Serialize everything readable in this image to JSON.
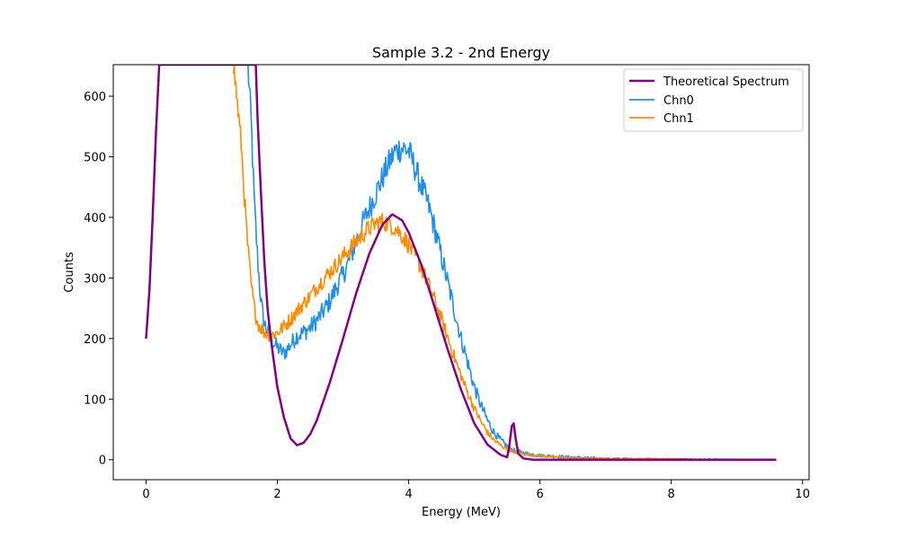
{
  "chart_data": {
    "type": "line",
    "title": "Sample 3.2 - 2nd Energy",
    "xlabel": "Energy (MeV)",
    "ylabel": "Counts",
    "xlim": [
      -0.5,
      10.1
    ],
    "ylim": [
      -33,
      652
    ],
    "xticks": [
      0,
      2,
      4,
      6,
      8,
      10
    ],
    "yticks": [
      0,
      100,
      200,
      300,
      400,
      500,
      600
    ],
    "grid": false,
    "legend_position": "top-right",
    "series": [
      {
        "name": "Theoretical Spectrum",
        "color": "#800080",
        "points": [
          [
            0.0,
            200
          ],
          [
            0.05,
            280
          ],
          [
            0.1,
            400
          ],
          [
            0.15,
            540
          ],
          [
            0.2,
            652
          ],
          [
            1.67,
            652
          ],
          [
            1.7,
            560
          ],
          [
            1.75,
            440
          ],
          [
            1.8,
            330
          ],
          [
            1.85,
            250
          ],
          [
            1.9,
            200
          ],
          [
            2.0,
            120
          ],
          [
            2.1,
            70
          ],
          [
            2.2,
            35
          ],
          [
            2.3,
            24
          ],
          [
            2.4,
            28
          ],
          [
            2.5,
            42
          ],
          [
            2.6,
            65
          ],
          [
            2.8,
            128
          ],
          [
            3.0,
            200
          ],
          [
            3.2,
            275
          ],
          [
            3.4,
            340
          ],
          [
            3.6,
            388
          ],
          [
            3.75,
            405
          ],
          [
            3.9,
            395
          ],
          [
            4.0,
            375
          ],
          [
            4.2,
            320
          ],
          [
            4.4,
            250
          ],
          [
            4.6,
            180
          ],
          [
            4.8,
            115
          ],
          [
            5.0,
            60
          ],
          [
            5.2,
            25
          ],
          [
            5.4,
            8
          ],
          [
            5.5,
            4
          ],
          [
            5.53,
            20
          ],
          [
            5.57,
            55
          ],
          [
            5.6,
            60
          ],
          [
            5.63,
            35
          ],
          [
            5.67,
            10
          ],
          [
            5.75,
            2
          ],
          [
            5.9,
            0
          ],
          [
            6.5,
            0
          ],
          [
            8.0,
            0
          ],
          [
            9.6,
            0
          ]
        ]
      },
      {
        "name": "Chn0",
        "color": "#1f8fe8",
        "points": [
          [
            1.55,
            652
          ],
          [
            1.6,
            560
          ],
          [
            1.65,
            420
          ],
          [
            1.7,
            330
          ],
          [
            1.75,
            260
          ],
          [
            1.8,
            225
          ],
          [
            1.9,
            200
          ],
          [
            2.0,
            185
          ],
          [
            2.1,
            175
          ],
          [
            2.2,
            190
          ],
          [
            2.3,
            205
          ],
          [
            2.4,
            210
          ],
          [
            2.5,
            218
          ],
          [
            2.6,
            230
          ],
          [
            2.7,
            245
          ],
          [
            2.8,
            262
          ],
          [
            2.9,
            285
          ],
          [
            3.0,
            305
          ],
          [
            3.1,
            330
          ],
          [
            3.2,
            360
          ],
          [
            3.3,
            390
          ],
          [
            3.4,
            415
          ],
          [
            3.5,
            440
          ],
          [
            3.6,
            465
          ],
          [
            3.7,
            490
          ],
          [
            3.8,
            510
          ],
          [
            3.9,
            515
          ],
          [
            4.0,
            510
          ],
          [
            4.1,
            480
          ],
          [
            4.2,
            450
          ],
          [
            4.3,
            420
          ],
          [
            4.4,
            380
          ],
          [
            4.5,
            335
          ],
          [
            4.6,
            290
          ],
          [
            4.7,
            245
          ],
          [
            4.8,
            200
          ],
          [
            4.9,
            160
          ],
          [
            5.0,
            120
          ],
          [
            5.1,
            90
          ],
          [
            5.2,
            65
          ],
          [
            5.3,
            45
          ],
          [
            5.4,
            32
          ],
          [
            5.5,
            22
          ],
          [
            5.6,
            15
          ],
          [
            5.8,
            10
          ],
          [
            6.0,
            7
          ],
          [
            6.5,
            4
          ],
          [
            7.0,
            2
          ],
          [
            8.0,
            1
          ],
          [
            9.0,
            0
          ],
          [
            9.6,
            0
          ]
        ],
        "noise": 18
      },
      {
        "name": "Chn1",
        "color": "#ff8c00",
        "points": [
          [
            1.33,
            652
          ],
          [
            1.38,
            600
          ],
          [
            1.45,
            520
          ],
          [
            1.5,
            430
          ],
          [
            1.55,
            350
          ],
          [
            1.6,
            290
          ],
          [
            1.65,
            250
          ],
          [
            1.7,
            225
          ],
          [
            1.8,
            210
          ],
          [
            1.9,
            205
          ],
          [
            2.0,
            210
          ],
          [
            2.1,
            220
          ],
          [
            2.2,
            232
          ],
          [
            2.3,
            245
          ],
          [
            2.4,
            258
          ],
          [
            2.5,
            270
          ],
          [
            2.6,
            285
          ],
          [
            2.7,
            298
          ],
          [
            2.8,
            310
          ],
          [
            2.9,
            322
          ],
          [
            3.0,
            335
          ],
          [
            3.1,
            348
          ],
          [
            3.2,
            360
          ],
          [
            3.3,
            372
          ],
          [
            3.4,
            382
          ],
          [
            3.5,
            390
          ],
          [
            3.6,
            393
          ],
          [
            3.7,
            390
          ],
          [
            3.8,
            382
          ],
          [
            3.9,
            370
          ],
          [
            4.0,
            355
          ],
          [
            4.1,
            335
          ],
          [
            4.2,
            315
          ],
          [
            4.3,
            290
          ],
          [
            4.4,
            262
          ],
          [
            4.5,
            232
          ],
          [
            4.6,
            200
          ],
          [
            4.7,
            168
          ],
          [
            4.8,
            138
          ],
          [
            4.9,
            110
          ],
          [
            5.0,
            85
          ],
          [
            5.1,
            63
          ],
          [
            5.2,
            45
          ],
          [
            5.3,
            32
          ],
          [
            5.4,
            24
          ],
          [
            5.5,
            18
          ],
          [
            5.6,
            13
          ],
          [
            5.8,
            9
          ],
          [
            6.0,
            6
          ],
          [
            6.5,
            3
          ],
          [
            7.0,
            2
          ],
          [
            8.0,
            1
          ],
          [
            9.0,
            0
          ],
          [
            9.6,
            0
          ]
        ],
        "noise": 14
      }
    ]
  }
}
